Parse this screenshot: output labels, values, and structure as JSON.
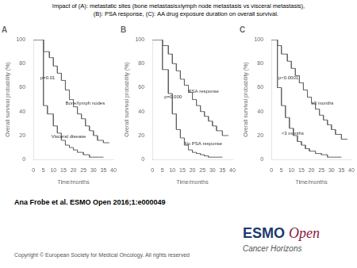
{
  "title": [
    "Impact of (A): metastatic sites (bone metastasis±lymph node metastasis vs visceral metastasis),",
    "         (B): PSA response, (C): AA drug exposure duration on overall survival."
  ],
  "annotations": [
    {
      "text": "Ana Frobe et al. ESMO Open 2016;1:e000049",
      "color": "#000000"
    },
    {
      "text": "Copyright © European Society for Medical Oncology. All rights reserved",
      "color": "#555555"
    },
    {
      "text": "ESMO",
      "color": "#1a3a6e"
    },
    {
      "text": "Open",
      "color": "#8b1a3a"
    },
    {
      "text": "Cancer Horizons",
      "color": "#555555"
    }
  ],
  "chart_data": [
    {
      "type": "line",
      "title": "A",
      "xlabel": "Time/months",
      "ylabel": "Overall survival probability (%)",
      "xlim": [
        0,
        40
      ],
      "ylim": [
        0,
        100
      ],
      "xticks": [
        0,
        5,
        10,
        15,
        20,
        25,
        30,
        35,
        40
      ],
      "yticks": [
        0,
        20,
        40,
        60,
        80,
        100
      ],
      "grid": false,
      "series": [
        {
          "color": "#666666",
          "x": [
            0,
            5,
            5,
            8,
            8,
            10,
            10,
            12,
            12,
            14,
            14,
            16,
            16,
            18,
            18,
            20,
            20,
            22,
            22,
            24,
            24,
            26,
            26,
            28,
            28,
            30,
            30,
            32,
            32,
            35,
            35,
            38
          ],
          "values": [
            100,
            100,
            90,
            90,
            85,
            85,
            78,
            78,
            72,
            72,
            66,
            66,
            58,
            58,
            50,
            50,
            44,
            44,
            38,
            38,
            34,
            34,
            28,
            28,
            24,
            24,
            20,
            20,
            16,
            16,
            14,
            14
          ]
        },
        {
          "color": "#666666",
          "x": [
            0,
            5,
            5,
            7,
            7,
            10,
            10,
            12,
            12,
            14,
            14,
            16,
            16,
            18,
            18,
            20,
            20,
            22,
            22,
            25,
            25,
            28,
            28,
            35
          ],
          "values": [
            100,
            100,
            45,
            45,
            38,
            38,
            28,
            28,
            22,
            22,
            16,
            16,
            12,
            12,
            10,
            10,
            8,
            8,
            6,
            6,
            4,
            4,
            2,
            2
          ]
        }
      ],
      "annotations": [
        {
          "text": "Bone/lymph nodes",
          "x": 16,
          "y": 47
        },
        {
          "text": "Visceral disease",
          "x": 9,
          "y": 19
        },
        {
          "text": "p=0.01",
          "x": 3.5,
          "y": 68
        }
      ]
    },
    {
      "type": "line",
      "title": "B",
      "xlabel": "Time/months",
      "ylabel": "Overall survival probability (%)",
      "xlim": [
        0,
        40
      ],
      "ylim": [
        0,
        100
      ],
      "xticks": [
        0,
        5,
        10,
        15,
        20,
        25,
        30,
        35,
        40
      ],
      "yticks": [
        0,
        20,
        40,
        60,
        80,
        100
      ],
      "grid": false,
      "series": [
        {
          "color": "#666666",
          "x": [
            0,
            5,
            5,
            8,
            8,
            10,
            10,
            12,
            12,
            14,
            14,
            16,
            16,
            18,
            18,
            20,
            20,
            22,
            22,
            24,
            24,
            26,
            26,
            28,
            28,
            30,
            30,
            32,
            32,
            35,
            35,
            38
          ],
          "values": [
            100,
            100,
            95,
            95,
            88,
            88,
            80,
            80,
            74,
            74,
            67,
            67,
            62,
            62,
            56,
            56,
            50,
            50,
            45,
            45,
            40,
            40,
            36,
            36,
            32,
            32,
            28,
            28,
            24,
            24,
            20,
            20
          ]
        },
        {
          "color": "#666666",
          "x": [
            0,
            5,
            5,
            8,
            8,
            10,
            10,
            12,
            12,
            14,
            14,
            16,
            16,
            18,
            18,
            20,
            20,
            22,
            22,
            24,
            24,
            26,
            26,
            28,
            28,
            35
          ],
          "values": [
            100,
            100,
            75,
            75,
            55,
            55,
            38,
            38,
            25,
            25,
            18,
            18,
            12,
            12,
            8,
            8,
            6,
            6,
            5,
            5,
            4,
            4,
            3,
            3,
            2,
            2
          ]
        }
      ],
      "annotations": [
        {
          "text": "PSA response",
          "x": 18,
          "y": 57
        },
        {
          "text": "No PSA response",
          "x": 16,
          "y": 13
        },
        {
          "text": "p=0.000",
          "x": 6,
          "y": 52
        }
      ]
    },
    {
      "type": "line",
      "title": "C",
      "xlabel": "Time/months",
      "ylabel": "Overall survival probability (%)",
      "xlim": [
        0,
        40
      ],
      "ylim": [
        0,
        100
      ],
      "xticks": [
        0,
        5,
        10,
        15,
        20,
        25,
        30,
        35,
        40
      ],
      "yticks": [
        0,
        20,
        40,
        60,
        80,
        100
      ],
      "grid": false,
      "series": [
        {
          "color": "#666666",
          "x": [
            0,
            3,
            3,
            5,
            5,
            8,
            8,
            10,
            10,
            12,
            12,
            14,
            14,
            16,
            16,
            18,
            18,
            20,
            20,
            22,
            22,
            24,
            24,
            26,
            26,
            28,
            28,
            30,
            30,
            32,
            32,
            35,
            35,
            38
          ],
          "values": [
            100,
            100,
            95,
            95,
            88,
            88,
            82,
            82,
            76,
            76,
            70,
            70,
            64,
            64,
            58,
            58,
            52,
            52,
            47,
            47,
            42,
            42,
            37,
            37,
            33,
            33,
            29,
            29,
            25,
            25,
            21,
            21,
            17,
            17
          ]
        },
        {
          "color": "#666666",
          "x": [
            0,
            3,
            3,
            5,
            5,
            7,
            7,
            9,
            9,
            11,
            11,
            13,
            13,
            15,
            15,
            17,
            17,
            19,
            19,
            22,
            22,
            25,
            25,
            28,
            28,
            35
          ],
          "values": [
            100,
            100,
            60,
            60,
            45,
            45,
            35,
            35,
            26,
            26,
            20,
            20,
            15,
            15,
            12,
            12,
            9,
            9,
            7,
            7,
            5,
            5,
            4,
            4,
            2,
            2
          ]
        }
      ],
      "annotations": [
        {
          "text": "≥3 months",
          "x": 20,
          "y": 47
        },
        {
          "text": "<3 months",
          "x": 5,
          "y": 22
        },
        {
          "text": "p<0.0001",
          "x": 3.5,
          "y": 68
        }
      ]
    }
  ]
}
